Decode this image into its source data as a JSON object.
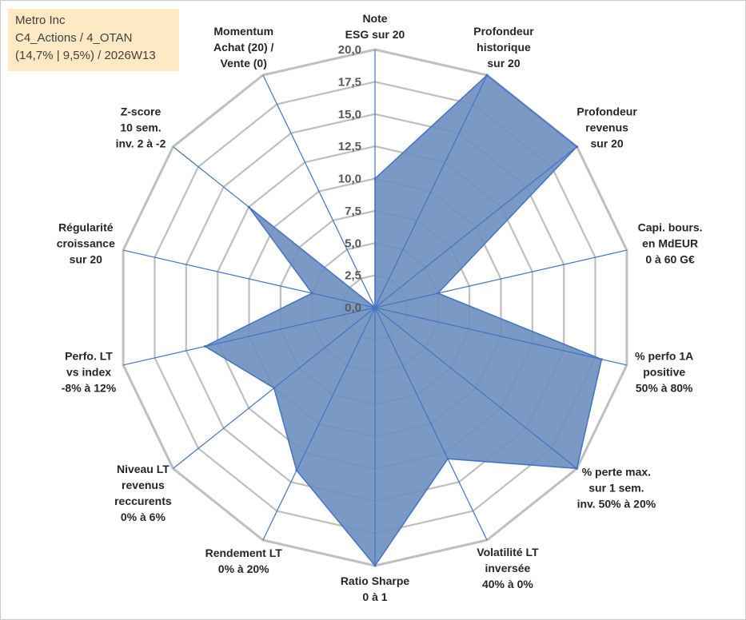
{
  "info": {
    "line1": "Metro Inc",
    "line2": "C4_Actions / 4_OTAN",
    "line3": "(14,7% | 9,5%) / 2026W13"
  },
  "colors": {
    "fill": "#6b8fbf",
    "stroke": "#4472c4",
    "grid": "#bfbfbf",
    "spoke": "#4472c4"
  },
  "chart_data": {
    "type": "radar",
    "rmin": 0,
    "rmax": 20,
    "ticks": [
      "0,0",
      "2,5",
      "5,0",
      "7,5",
      "10,0",
      "12,5",
      "15,0",
      "17,5",
      "20,0"
    ],
    "grid": true,
    "axes": [
      {
        "label": [
          "Note",
          "ESG sur 20"
        ],
        "value": 10
      },
      {
        "label": [
          "Profondeur",
          "historique",
          "sur 20"
        ],
        "value": 20
      },
      {
        "label": [
          "Profondeur",
          "revenus",
          "sur 20"
        ],
        "value": 20
      },
      {
        "label": [
          "Capi. bours.",
          "en MdEUR",
          "0 à 60 G€"
        ],
        "value": 5
      },
      {
        "label": [
          "% perfo 1A",
          "positive",
          "50% à 80%"
        ],
        "value": 18
      },
      {
        "label": [
          "% perte max.",
          "sur 1 sem.",
          "inv. 50% à 20%"
        ],
        "value": 20
      },
      {
        "label": [
          "Volatilité LT",
          "inversée",
          "40% à 0%"
        ],
        "value": 13
      },
      {
        "label": [
          "Ratio Sharpe",
          "0 à 1"
        ],
        "value": 20
      },
      {
        "label": [
          "Rendement LT",
          "0% à 20%"
        ],
        "value": 14
      },
      {
        "label": [
          "Niveau LT",
          "revenus",
          "reccurents",
          "0% à 6%"
        ],
        "value": 10
      },
      {
        "label": [
          "Perfo. LT",
          "vs index",
          "-8% à 12%"
        ],
        "value": 13.5
      },
      {
        "label": [
          "Régularité",
          "croissance",
          "sur 20"
        ],
        "value": 5
      },
      {
        "label": [
          "Z-score",
          "10 sem.",
          "inv. 2 à -2"
        ],
        "value": 12.5
      },
      {
        "label": [
          "Momentum",
          "Achat (20) /",
          "Vente (0)"
        ],
        "value": 0
      }
    ]
  }
}
